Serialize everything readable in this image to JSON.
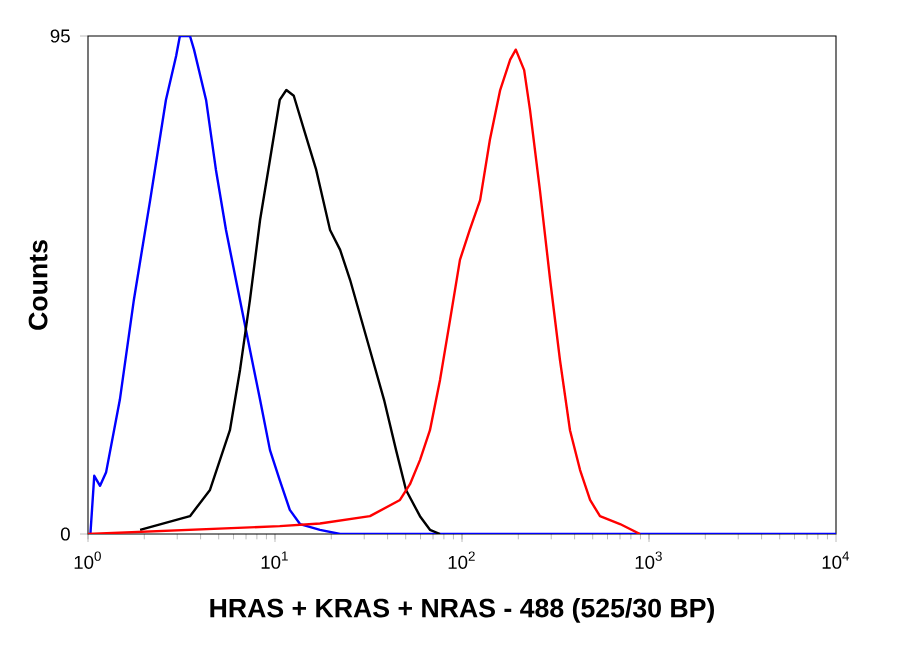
{
  "chart_data": {
    "type": "line",
    "xlabel": "HRAS + KRAS + NRAS - 488 (525/30 BP)",
    "ylabel": "Counts",
    "log": "x",
    "marker": "none",
    "line_style": "solid",
    "xlim": [
      1,
      10000
    ],
    "ylim": [
      0,
      95
    ],
    "xticks": [
      {
        "value": 1,
        "label": "10$^{0}$"
      },
      {
        "value": 10,
        "label": "10$^{1}$"
      },
      {
        "value": 100,
        "label": "10$^{2}$"
      },
      {
        "value": 1000,
        "label": "10$^{3}$"
      },
      {
        "value": 10000,
        "label": "10$^{4}$"
      }
    ],
    "yticks": [
      0,
      95
    ],
    "series": [
      {
        "color": "#0000ff",
        "x": [
          1.03,
          1.08,
          1.16,
          1.25,
          1.48,
          1.76,
          2.15,
          2.61,
          2.96,
          3.1,
          3.51,
          3.69,
          4.28,
          4.83,
          5.47,
          6.18,
          7.17,
          8.32,
          9.4,
          10.6,
          12.0,
          13.6,
          17.4,
          22.3,
          100,
          10000
        ],
        "values": [
          0,
          11.1,
          9.2,
          11.8,
          25.6,
          44.7,
          63.7,
          82.8,
          91.2,
          95,
          95,
          92.4,
          82.8,
          69.5,
          58.0,
          48.5,
          37.0,
          25.6,
          16.0,
          10.3,
          4.6,
          1.9,
          0.8,
          0,
          0,
          0
        ]
      },
      {
        "color": "#000000",
        "x": [
          1.9,
          3.51,
          4.49,
          5.74,
          6.5,
          7.35,
          8.32,
          9.4,
          10.6,
          11.5,
          12.6,
          14.3,
          16.6,
          19.7,
          22.3,
          25.2,
          32.2,
          38.3,
          44.4,
          50.2,
          59.6,
          67.4,
          76.3
        ],
        "values": [
          0.8,
          3.4,
          8.4,
          19.8,
          31.3,
          44.7,
          59.9,
          71.4,
          82.8,
          84.7,
          83.6,
          77.1,
          69.5,
          58.0,
          54.2,
          48.5,
          35.1,
          25.6,
          16.0,
          8.4,
          3.4,
          0.8,
          0
        ]
      },
      {
        "color": "#ff0000",
        "x": [
          1,
          10.6,
          17.4,
          32.2,
          46.6,
          52.7,
          59.6,
          67.4,
          76.3,
          86.3,
          97.5,
          110,
          125,
          141,
          160,
          181,
          194,
          215,
          231,
          261,
          296,
          334,
          378,
          428,
          484,
          547,
          700,
          895
        ],
        "values": [
          0,
          1.5,
          2,
          3.4,
          6.5,
          9.5,
          14.1,
          19.8,
          29.4,
          40.8,
          52.3,
          58.0,
          63.7,
          75.2,
          84.7,
          90.5,
          92.4,
          88.5,
          80.9,
          65.6,
          48.5,
          33.2,
          19.8,
          12.2,
          6.5,
          3.4,
          1.9,
          0
        ]
      }
    ]
  }
}
